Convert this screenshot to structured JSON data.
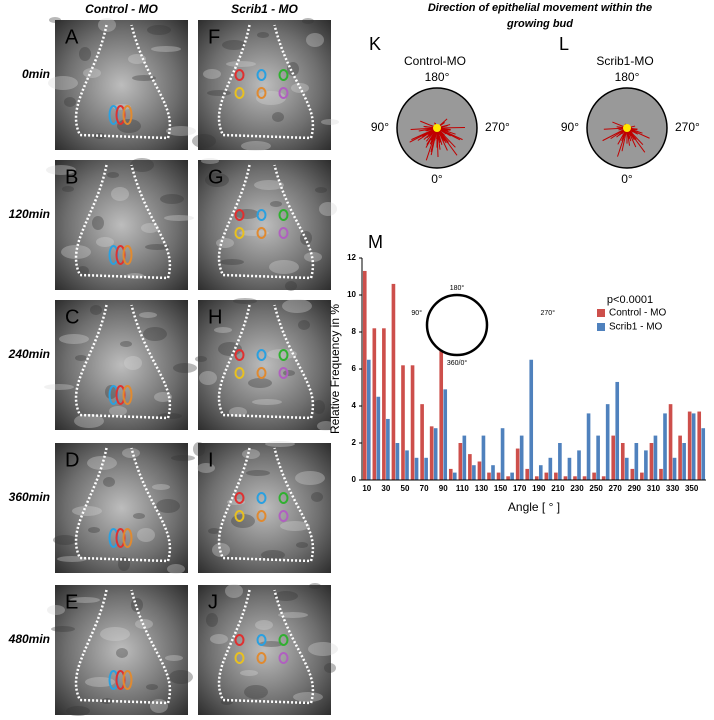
{
  "figure": {
    "column_headers": [
      "Control - MO",
      "Scrib1 - MO"
    ],
    "row_labels": [
      "0min",
      "120min",
      "240min",
      "360min",
      "480min"
    ],
    "panels": [
      "A",
      "B",
      "C",
      "D",
      "E",
      "F",
      "G",
      "H",
      "I",
      "J"
    ],
    "title": "Direction of epithelial movement within the growing bud",
    "rose_plots": [
      {
        "letter": "K",
        "name": "Control-MO",
        "top": "180°",
        "left": "90°",
        "right": "270°",
        "bottom": "0°"
      },
      {
        "letter": "L",
        "name": "Scrib1-MO",
        "top": "180°",
        "left": "90°",
        "right": "270°",
        "bottom": "0°"
      }
    ]
  },
  "chart_data": {
    "type": "bar",
    "letter": "M",
    "y_label": "Relative Frequency in %",
    "x_label": "Angle [ ° ]",
    "annotation": "p<0.0001",
    "inset": {
      "top": "180°",
      "left": "90°",
      "right": "270°",
      "bottom": "360/0°"
    },
    "categories": [
      "10",
      null,
      "30",
      null,
      "50",
      null,
      "70",
      null,
      "90",
      null,
      "110",
      null,
      "130",
      null,
      "150",
      null,
      "170",
      null,
      "190",
      null,
      "210",
      null,
      "230",
      null,
      "250",
      null,
      "270",
      null,
      "290",
      null,
      "310",
      null,
      "330",
      null,
      "350",
      null
    ],
    "series": [
      {
        "name": "Control - MO",
        "color": "#cd4f4b",
        "values": [
          11.3,
          8.2,
          8.2,
          10.6,
          6.2,
          6.2,
          4.1,
          2.9,
          7.9,
          0.6,
          2.0,
          1.4,
          1.0,
          0.4,
          0.4,
          0.2,
          1.7,
          0.6,
          0.2,
          0.4,
          0.4,
          0.2,
          0.2,
          0.2,
          0.4,
          0.2,
          2.4,
          2.0,
          0.6,
          0.4,
          2.0,
          0.6,
          4.1,
          2.4,
          3.7,
          3.7
        ]
      },
      {
        "name": "Scrib1 - MO",
        "color": "#4f81bd",
        "values": [
          6.5,
          4.5,
          3.3,
          2.0,
          1.6,
          1.2,
          1.2,
          2.8,
          4.9,
          0.4,
          2.4,
          0.8,
          2.4,
          0.8,
          2.8,
          0.4,
          2.4,
          6.5,
          0.8,
          1.2,
          2.0,
          1.2,
          1.6,
          3.6,
          2.4,
          4.1,
          5.3,
          1.2,
          2.0,
          1.6,
          2.4,
          3.6,
          1.2,
          2.0,
          3.6,
          2.8
        ]
      }
    ],
    "ylim": [
      0,
      12
    ],
    "yticks": [
      0,
      2,
      4,
      6,
      8,
      10,
      12
    ],
    "legend": "right"
  }
}
